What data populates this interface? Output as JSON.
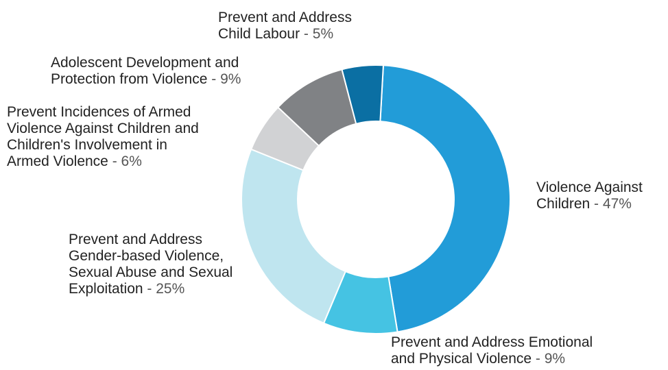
{
  "chart_data": {
    "type": "pie",
    "donut": true,
    "slices": [
      {
        "label": "Violence Against Children",
        "value": 47,
        "display": "47%",
        "color": "#229cd8"
      },
      {
        "label": "Prevent and Address Emotional and Physical Violence",
        "value": 9,
        "display": "9%",
        "color": "#45c3e3"
      },
      {
        "label": "Prevent and Address Gender-based Violence, Sexual Abuse and Sexual Exploitation",
        "value": 25,
        "display": "25%",
        "color": "#bfe5ef"
      },
      {
        "label": "Prevent Incidences of Armed Violence Against Children and Children's Involvement in Armed Violence",
        "value": 6,
        "display": "6%",
        "color": "#d1d2d4"
      },
      {
        "label": "Adolescent Development and Protection from Violence",
        "value": 9,
        "display": "9%",
        "color": "#808285"
      },
      {
        "label": "Prevent and Address Child Labour",
        "value": 5,
        "display": "5%",
        "color": "#0b6fa3"
      }
    ]
  },
  "labels": {
    "s0": {
      "line1": "Violence Against",
      "line2": "Children",
      "pct": "47%"
    },
    "s1": {
      "line1": "Prevent and Address Emotional",
      "line2": "and Physical Violence",
      "pct": "9%"
    },
    "s2": {
      "line1": "Prevent and Address",
      "line2": "Gender-based Violence,",
      "line3": "Sexual Abuse and Sexual",
      "line4": "Exploitation",
      "pct": "25%"
    },
    "s3": {
      "line1": "Prevent Incidences of Armed",
      "line2": "Violence Against Children and",
      "line3": "Children's Involvement in",
      "line4": "Armed Violence",
      "pct": "6%"
    },
    "s4": {
      "line1": "Adolescent Development and",
      "line2": "Protection from Violence",
      "pct": "9%"
    },
    "s5": {
      "line1": "Prevent and Address",
      "line2": "Child Labour",
      "pct": "5%"
    }
  },
  "separator": " - "
}
